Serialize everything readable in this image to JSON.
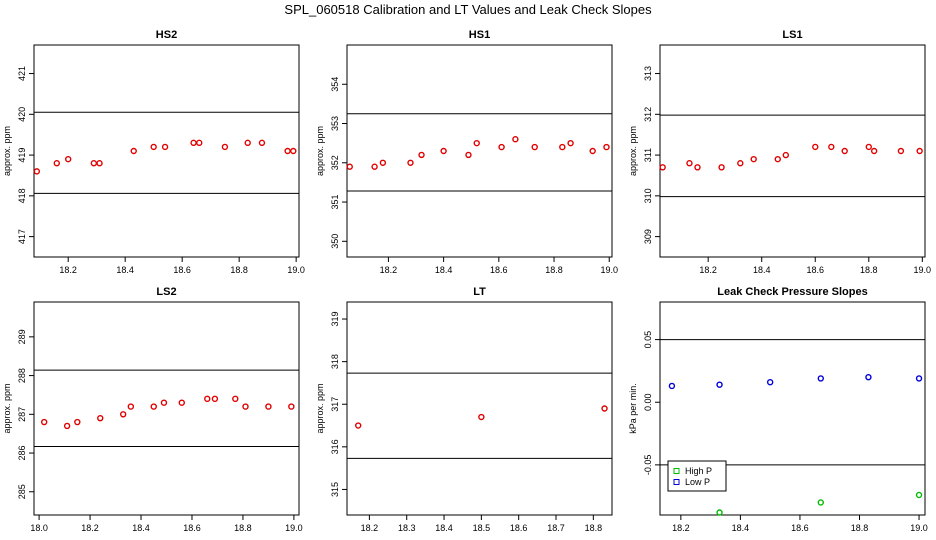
{
  "suptitle": "SPL_060518  Calibration and LT Values and Leak Check Slopes",
  "chart_data": [
    {
      "type": "scatter",
      "title": "HS2",
      "ylabel": "approx. ppm",
      "xlim": [
        18.08,
        19.01
      ],
      "ylim": [
        416.5,
        421.7
      ],
      "xticks": [
        18.2,
        18.4,
        18.6,
        18.8,
        19.0
      ],
      "xtick_labels": [
        "18.2",
        "18.4",
        "18.6",
        "18.8",
        "19.0"
      ],
      "yticks": [
        417,
        418,
        419,
        420,
        421
      ],
      "ytick_labels": [
        "417",
        "418",
        "419",
        "420",
        "421"
      ],
      "hlines": [
        420.05,
        418.06
      ],
      "series": [
        {
          "color": "#e00000",
          "marker": "circle",
          "x": [
            18.09,
            18.16,
            18.2,
            18.29,
            18.31,
            18.43,
            18.5,
            18.54,
            18.64,
            18.66,
            18.75,
            18.83,
            18.88,
            18.97,
            18.99
          ],
          "y": [
            418.6,
            418.8,
            418.9,
            418.8,
            418.8,
            419.1,
            419.2,
            419.2,
            419.3,
            419.3,
            419.2,
            419.3,
            419.3,
            419.1,
            419.1
          ]
        }
      ]
    },
    {
      "type": "scatter",
      "title": "HS1",
      "ylabel": "approx. ppm",
      "xlim": [
        18.05,
        19.01
      ],
      "ylim": [
        349.6,
        355.0
      ],
      "xticks": [
        18.2,
        18.4,
        18.6,
        18.8,
        19.0
      ],
      "xtick_labels": [
        "18.2",
        "18.4",
        "18.6",
        "18.8",
        "19.0"
      ],
      "yticks": [
        350,
        351,
        352,
        353,
        354
      ],
      "ytick_labels": [
        "350",
        "351",
        "352",
        "353",
        "354"
      ],
      "hlines": [
        353.25,
        351.28
      ],
      "series": [
        {
          "color": "#e00000",
          "marker": "circle",
          "x": [
            18.06,
            18.15,
            18.18,
            18.28,
            18.32,
            18.4,
            18.49,
            18.52,
            18.61,
            18.66,
            18.73,
            18.83,
            18.86,
            18.94,
            18.99
          ],
          "y": [
            351.9,
            351.9,
            352.0,
            352.0,
            352.2,
            352.3,
            352.2,
            352.5,
            352.4,
            352.6,
            352.4,
            352.4,
            352.5,
            352.3,
            352.4
          ]
        }
      ]
    },
    {
      "type": "scatter",
      "title": "LS1",
      "ylabel": "approx. ppm",
      "xlim": [
        18.02,
        19.01
      ],
      "ylim": [
        308.5,
        313.7
      ],
      "xticks": [
        18.2,
        18.4,
        18.6,
        18.8,
        19.0
      ],
      "xtick_labels": [
        "18.2",
        "18.4",
        "18.6",
        "18.8",
        "19.0"
      ],
      "yticks": [
        309,
        310,
        311,
        312,
        313
      ],
      "ytick_labels": [
        "309",
        "310",
        "311",
        "312",
        "313"
      ],
      "hlines": [
        311.98,
        309.98
      ],
      "series": [
        {
          "color": "#e00000",
          "marker": "circle",
          "x": [
            18.03,
            18.13,
            18.16,
            18.25,
            18.32,
            18.37,
            18.46,
            18.49,
            18.6,
            18.66,
            18.71,
            18.8,
            18.82,
            18.92,
            18.99
          ],
          "y": [
            310.7,
            310.8,
            310.7,
            310.7,
            310.8,
            310.9,
            310.9,
            311.0,
            311.2,
            311.2,
            311.1,
            311.2,
            311.1,
            311.1,
            311.1
          ]
        }
      ]
    },
    {
      "type": "scatter",
      "title": "LS2",
      "ylabel": "approx. ppm",
      "xlim": [
        17.98,
        19.02
      ],
      "ylim": [
        284.4,
        289.9
      ],
      "xticks": [
        18.0,
        18.2,
        18.4,
        18.6,
        18.8,
        19.0
      ],
      "xtick_labels": [
        "18.0",
        "18.2",
        "18.4",
        "18.6",
        "18.8",
        "19.0"
      ],
      "yticks": [
        285,
        286,
        287,
        288,
        289
      ],
      "ytick_labels": [
        "285",
        "286",
        "287",
        "288",
        "289"
      ],
      "hlines": [
        288.14,
        286.17
      ],
      "series": [
        {
          "color": "#e00000",
          "marker": "circle",
          "x": [
            18.02,
            18.11,
            18.15,
            18.24,
            18.33,
            18.36,
            18.45,
            18.49,
            18.56,
            18.66,
            18.69,
            18.77,
            18.81,
            18.9,
            18.99
          ],
          "y": [
            286.8,
            286.7,
            286.8,
            286.9,
            287.0,
            287.2,
            287.2,
            287.3,
            287.3,
            287.4,
            287.4,
            287.4,
            287.2,
            287.2,
            287.2
          ]
        }
      ]
    },
    {
      "type": "scatter",
      "title": "LT",
      "ylabel": "approx. ppm",
      "xlim": [
        18.14,
        18.85
      ],
      "ylim": [
        314.4,
        319.4
      ],
      "xticks": [
        18.2,
        18.3,
        18.4,
        18.5,
        18.6,
        18.7,
        18.8
      ],
      "xtick_labels": [
        "18.2",
        "18.3",
        "18.4",
        "18.5",
        "18.6",
        "18.7",
        "18.8"
      ],
      "yticks": [
        315,
        316,
        317,
        318,
        319
      ],
      "ytick_labels": [
        "315",
        "316",
        "317",
        "318",
        "319"
      ],
      "hlines": [
        317.73,
        315.73
      ],
      "series": [
        {
          "color": "#e00000",
          "marker": "circle",
          "x": [
            18.17,
            18.5,
            18.83
          ],
          "y": [
            316.5,
            316.7,
            316.9
          ]
        }
      ]
    },
    {
      "type": "scatter",
      "title": "Leak Check Pressure Slopes",
      "ylabel": "kPa per min.",
      "xlim": [
        18.13,
        19.02
      ],
      "ylim": [
        -0.09,
        0.08
      ],
      "xticks": [
        18.2,
        18.4,
        18.6,
        18.8,
        19.0
      ],
      "xtick_labels": [
        "18.2",
        "18.4",
        "18.6",
        "18.8",
        "19.0"
      ],
      "yticks": [
        -0.05,
        0.0,
        0.05
      ],
      "ytick_labels": [
        "-0.05",
        "0.00",
        "0.05"
      ],
      "hlines": [
        0.05,
        -0.05
      ],
      "legend": {
        "position": "bottom-left",
        "entries": [
          "High P",
          "Low P"
        ]
      },
      "series": [
        {
          "name": "High P",
          "color": "#00bb00",
          "marker": "circle",
          "x": [
            18.33,
            18.67,
            19.0
          ],
          "y": [
            -0.088,
            -0.08,
            -0.074
          ]
        },
        {
          "name": "Low P",
          "color": "#0000dd",
          "marker": "circle",
          "x": [
            18.17,
            18.33,
            18.5,
            18.67,
            18.83,
            19.0
          ],
          "y": [
            0.013,
            0.014,
            0.016,
            0.019,
            0.02,
            0.019
          ]
        }
      ]
    }
  ]
}
